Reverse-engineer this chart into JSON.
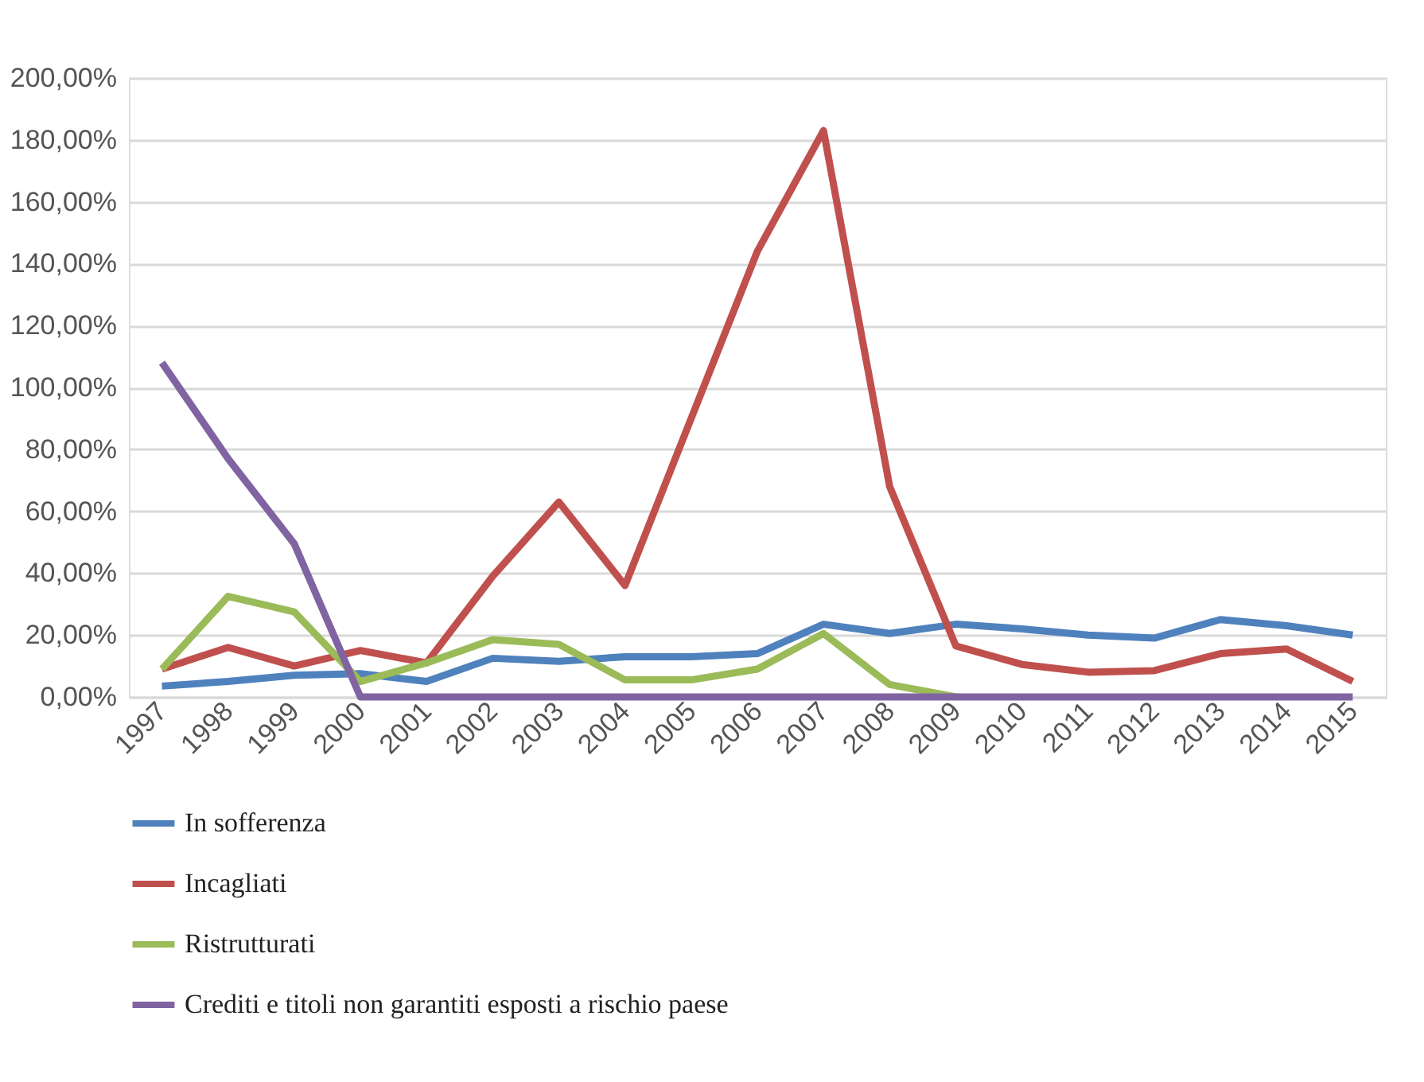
{
  "chart_data": {
    "type": "line",
    "categories": [
      "1997",
      "1998",
      "1999",
      "2000",
      "2001",
      "2002",
      "2003",
      "2004",
      "2005",
      "2006",
      "2007",
      "2008",
      "2009",
      "2010",
      "2011",
      "2012",
      "2013",
      "2014",
      "2015"
    ],
    "series": [
      {
        "name": "In sofferenza",
        "color": "#4f81bd",
        "values": [
          3.5,
          5,
          7,
          7.5,
          5,
          12.5,
          11.5,
          13,
          13,
          14,
          23.5,
          20.5,
          23.5,
          22,
          20,
          19,
          25,
          23,
          20
        ]
      },
      {
        "name": "Incagliati",
        "color": "#c0504d",
        "values": [
          9,
          16,
          10,
          15,
          11,
          39,
          63,
          36,
          90,
          144,
          183,
          68,
          16.5,
          10.5,
          8,
          8.5,
          14,
          15.5,
          5
        ]
      },
      {
        "name": "Ristrutturati",
        "color": "#9bbb59",
        "values": [
          9,
          32.5,
          27.5,
          5,
          11,
          18.5,
          17,
          5.5,
          5.5,
          9,
          20.5,
          4,
          0,
          null,
          null,
          null,
          null,
          null,
          null
        ]
      },
      {
        "name": "Crediti e titoli non garantiti esposti a rischio paese",
        "color": "#8064a2",
        "values": [
          108,
          77,
          49.5,
          0,
          0,
          0,
          0,
          0,
          0,
          0,
          0,
          0,
          0,
          0,
          0,
          0,
          0,
          0,
          0
        ]
      }
    ],
    "ylim": [
      0,
      200
    ],
    "yticks": [
      {
        "value": 0,
        "label": "0,00%"
      },
      {
        "value": 20,
        "label": "20,00%"
      },
      {
        "value": 40,
        "label": "40,00%"
      },
      {
        "value": 60,
        "label": "60,00%"
      },
      {
        "value": 80,
        "label": "80,00%"
      },
      {
        "value": 100,
        "label": "100,00%"
      },
      {
        "value": 120,
        "label": "120,00%"
      },
      {
        "value": 140,
        "label": "140,00%"
      },
      {
        "value": 160,
        "label": "160,00%"
      },
      {
        "value": 180,
        "label": "180,00%"
      },
      {
        "value": 200,
        "label": "200,00%"
      }
    ],
    "grid": "y",
    "legend": "bottom",
    "marker": "none",
    "line_style": "solid"
  }
}
